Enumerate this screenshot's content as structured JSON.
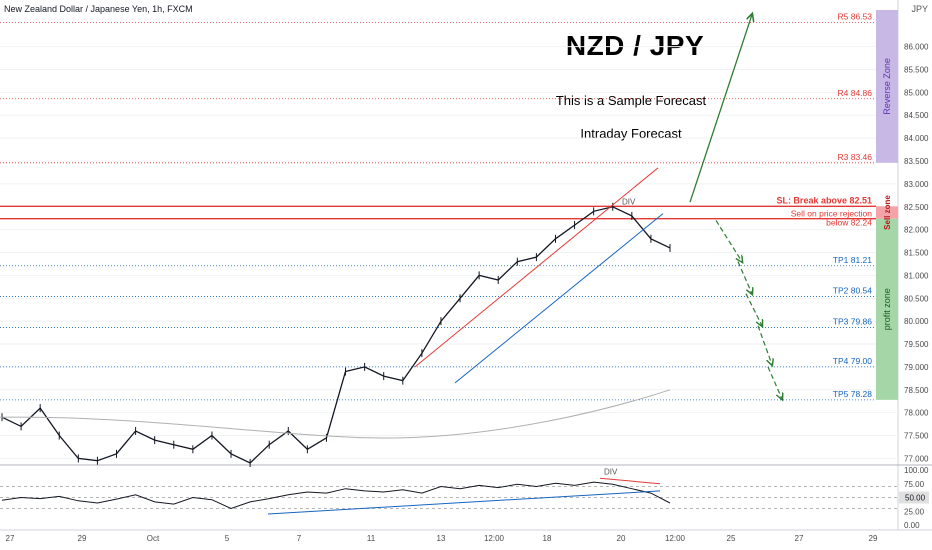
{
  "header": {
    "symbol_line": "New Zealand Dollar / Japanese Yen, 1h, FXCM",
    "price_unit": "JPY"
  },
  "annotations": {
    "main_title": "NZD / JPY",
    "line1": "This is a Sample Forecast",
    "line2": "Intraday Forecast"
  },
  "zones": {
    "reverse": "Reverse Zone",
    "sell": "Sell zone",
    "profit": "profit zone"
  },
  "colors": {
    "red": "#e53935",
    "blue": "#1565c0",
    "green": "#2e7d32",
    "reverse_zone": "#c8b8e6",
    "sell_zone": "#f4a3a8",
    "profit_zone": "#a5d6a7"
  },
  "chart_data": {
    "type": "line",
    "series": [
      {
        "name": "",
        "values": [
          77.9,
          77.7,
          78.1,
          77.5,
          77.0,
          76.95,
          77.1,
          77.6,
          77.4,
          77.3,
          77.2,
          77.5,
          77.1,
          76.9,
          77.3,
          77.6,
          77.2,
          77.45,
          78.9,
          79.0,
          78.8,
          78.7,
          79.3,
          80.0,
          80.5,
          81.0,
          80.9,
          81.3,
          81.4,
          81.8,
          82.1,
          82.4,
          82.5,
          82.3,
          81.8,
          81.6
        ]
      }
    ],
    "y_ticks": [
      86.0,
      85.5,
      85.0,
      84.5,
      84.0,
      83.5,
      83.0,
      82.5,
      82.0,
      81.5,
      81.0,
      80.5,
      80.0,
      79.5,
      79.0,
      78.5,
      78.0,
      77.5,
      77.0
    ],
    "y_tick_labels": [
      "86.000",
      "85.500",
      "85.000",
      "84.500",
      "84.000",
      "83.500",
      "83.000",
      "82.500",
      "82.000",
      "81.500",
      "81.000",
      "80.500",
      "80.000",
      "79.500",
      "79.000",
      "78.500",
      "78.000",
      "77.500",
      "77.000"
    ],
    "ylim": [
      76.9,
      86.8
    ],
    "x_tick_labels": [
      "27",
      "29",
      "Oct",
      "5",
      "7",
      "11",
      "13",
      "12:00",
      "18",
      "20",
      "12:00",
      "25",
      "27",
      "29"
    ],
    "levels": [
      {
        "label": "R5 86.53",
        "value": 86.53,
        "color": "#e53935",
        "style": "dotted"
      },
      {
        "label": "R4 84.86",
        "value": 84.86,
        "color": "#e53935",
        "style": "dotted"
      },
      {
        "label": "R3 83.46",
        "value": 83.46,
        "color": "#e53935",
        "style": "dotted"
      },
      {
        "label": "SL: Break above 82.51",
        "value": 82.51,
        "color": "#e53935",
        "style": "solid"
      },
      {
        "label": "Sell on price rejection",
        "value": 82.35,
        "color": "#e53935",
        "style": "none"
      },
      {
        "label": "below 82.24",
        "value": 82.24,
        "color": "#e53935",
        "style": "solid"
      },
      {
        "label": "TP1 81.21",
        "value": 81.21,
        "color": "#1565c0",
        "style": "dotted"
      },
      {
        "label": "TP2 80.54",
        "value": 80.54,
        "color": "#1565c0",
        "style": "dotted"
      },
      {
        "label": "TP3 79.86",
        "value": 79.86,
        "color": "#1565c0",
        "style": "dotted"
      },
      {
        "label": "TP4 79.00",
        "value": 79.0,
        "color": "#1565c0",
        "style": "dotted"
      },
      {
        "label": "TP5 78.28",
        "value": 78.28,
        "color": "#1565c0",
        "style": "dotted"
      }
    ],
    "div_label_price": "DIV",
    "oscillator": {
      "ticks": [
        "100.00",
        "75.00",
        "50.00",
        "25.00",
        "0.00"
      ],
      "div_label": "DIV",
      "current_label": "50.00"
    },
    "grid": true
  }
}
